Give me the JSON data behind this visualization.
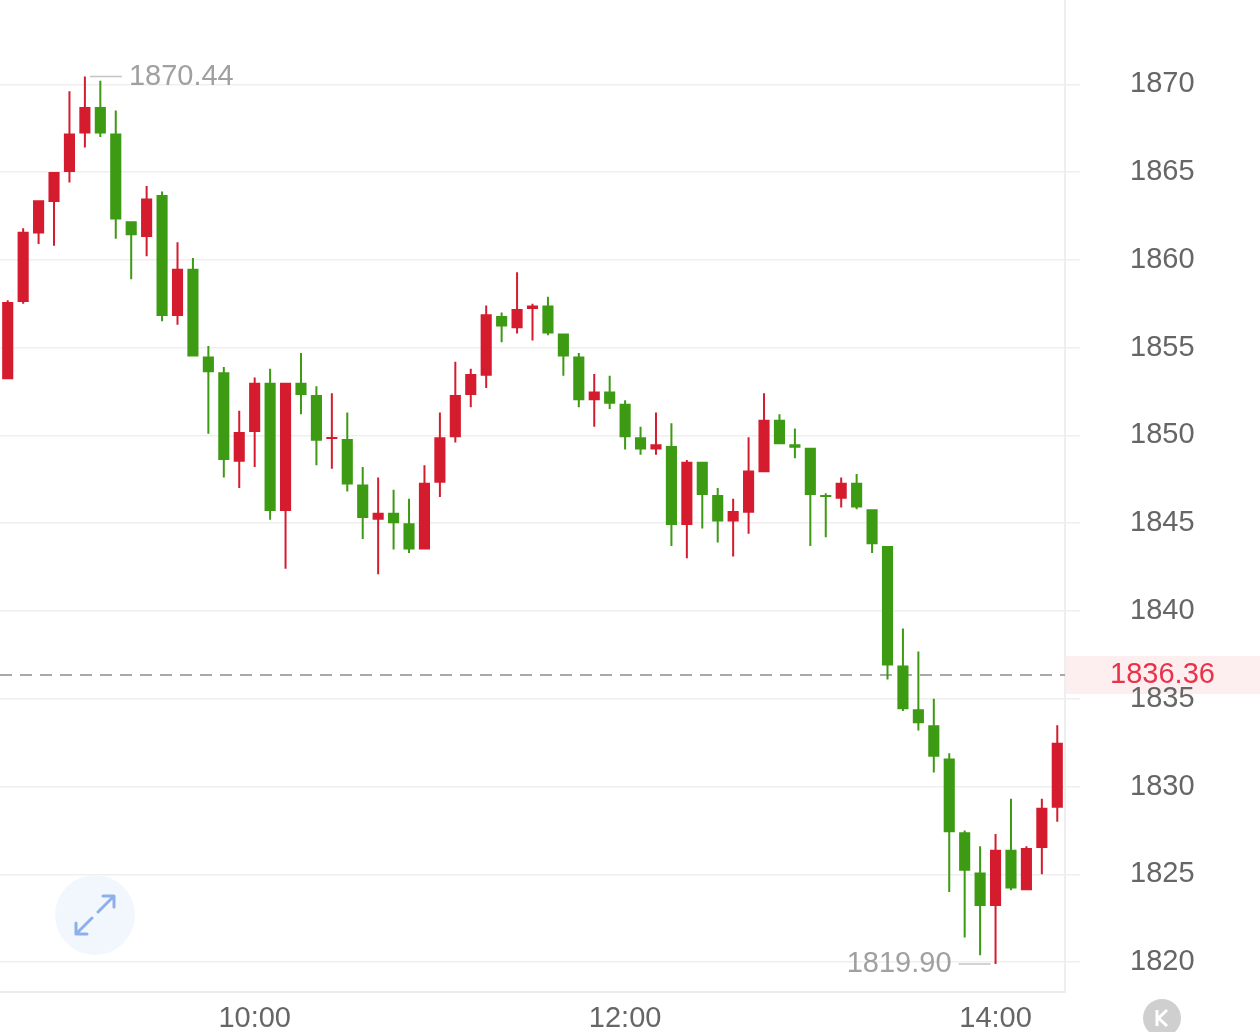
{
  "chart_data": {
    "type": "candlestick",
    "categories": [
      null,
      null,
      null,
      null,
      null,
      null,
      null,
      null,
      null,
      null,
      null,
      null,
      null,
      null,
      null,
      null,
      "10:00",
      null,
      null,
      null,
      null,
      null,
      null,
      null,
      null,
      null,
      null,
      null,
      null,
      null,
      null,
      null,
      null,
      null,
      null,
      null,
      null,
      null,
      null,
      null,
      "12:00",
      null,
      null,
      null,
      null,
      null,
      null,
      null,
      null,
      null,
      null,
      null,
      null,
      null,
      null,
      null,
      null,
      null,
      null,
      null,
      null,
      null,
      null,
      null,
      "14:00",
      null,
      null,
      null,
      null
    ],
    "ohlc": [
      [
        1853.2,
        1857.7,
        1853.2,
        1857.6
      ],
      [
        1857.6,
        1861.8,
        1857.5,
        1861.6
      ],
      [
        1861.5,
        1863.4,
        1860.9,
        1863.4
      ],
      [
        1863.3,
        1865.0,
        1860.8,
        1865.0
      ],
      [
        1865.0,
        1869.6,
        1864.4,
        1867.2
      ],
      [
        1867.2,
        1870.44,
        1866.4,
        1868.7
      ],
      [
        1868.7,
        1870.2,
        1867.0,
        1867.2
      ],
      [
        1867.2,
        1868.5,
        1861.2,
        1862.3
      ],
      [
        1862.2,
        1862.2,
        1858.9,
        1861.4
      ],
      [
        1861.3,
        1864.2,
        1860.2,
        1863.5
      ],
      [
        1863.7,
        1863.9,
        1856.5,
        1856.8
      ],
      [
        1856.8,
        1861.0,
        1856.3,
        1859.5
      ],
      [
        1859.5,
        1860.1,
        1854.5,
        1854.5
      ],
      [
        1854.5,
        1855.1,
        1850.1,
        1853.6
      ],
      [
        1853.6,
        1853.9,
        1847.6,
        1848.6
      ],
      [
        1848.5,
        1851.4,
        1847.0,
        1850.2
      ],
      [
        1850.2,
        1853.3,
        1848.2,
        1853.0
      ],
      [
        1853.0,
        1853.8,
        1845.2,
        1845.7
      ],
      [
        1845.7,
        1853.0,
        1842.4,
        1853.0
      ],
      [
        1853.0,
        1854.7,
        1851.2,
        1852.3
      ],
      [
        1852.3,
        1852.8,
        1848.3,
        1849.7
      ],
      [
        1849.8,
        1852.4,
        1848.1,
        1849.9
      ],
      [
        1849.8,
        1851.3,
        1846.8,
        1847.2
      ],
      [
        1847.2,
        1848.2,
        1844.1,
        1845.3
      ],
      [
        1845.2,
        1847.6,
        1842.1,
        1845.6
      ],
      [
        1845.6,
        1846.9,
        1843.5,
        1845.0
      ],
      [
        1845.0,
        1846.4,
        1843.3,
        1843.5
      ],
      [
        1843.5,
        1848.3,
        1843.5,
        1847.3
      ],
      [
        1847.3,
        1851.3,
        1846.5,
        1849.9
      ],
      [
        1849.9,
        1854.2,
        1849.6,
        1852.3
      ],
      [
        1852.3,
        1853.8,
        1851.6,
        1853.5
      ],
      [
        1853.4,
        1857.4,
        1852.7,
        1856.9
      ],
      [
        1856.8,
        1857.0,
        1855.3,
        1856.2
      ],
      [
        1856.1,
        1859.3,
        1855.8,
        1857.2
      ],
      [
        1857.2,
        1857.5,
        1855.4,
        1857.4
      ],
      [
        1857.4,
        1857.9,
        1855.7,
        1855.8
      ],
      [
        1855.8,
        1855.8,
        1853.4,
        1854.5
      ],
      [
        1854.5,
        1854.7,
        1851.6,
        1852.0
      ],
      [
        1852.0,
        1853.5,
        1850.5,
        1852.5
      ],
      [
        1852.5,
        1853.4,
        1851.5,
        1851.8
      ],
      [
        1851.8,
        1852.0,
        1849.2,
        1849.9
      ],
      [
        1849.9,
        1850.5,
        1848.9,
        1849.2
      ],
      [
        1849.2,
        1851.3,
        1848.9,
        1849.5
      ],
      [
        1849.4,
        1850.7,
        1843.7,
        1844.9
      ],
      [
        1844.9,
        1848.6,
        1843.0,
        1848.5
      ],
      [
        1848.5,
        1848.5,
        1844.7,
        1846.6
      ],
      [
        1846.6,
        1847.0,
        1843.9,
        1845.1
      ],
      [
        1845.1,
        1846.4,
        1843.1,
        1845.7
      ],
      [
        1845.6,
        1849.9,
        1844.4,
        1848.0
      ],
      [
        1847.9,
        1852.4,
        1847.9,
        1850.9
      ],
      [
        1850.9,
        1851.2,
        1849.5,
        1849.5
      ],
      [
        1849.5,
        1850.4,
        1848.7,
        1849.3
      ],
      [
        1849.3,
        1849.3,
        1843.7,
        1846.6
      ],
      [
        1846.6,
        1846.7,
        1844.2,
        1846.5
      ],
      [
        1846.4,
        1847.6,
        1845.9,
        1847.3
      ],
      [
        1847.3,
        1847.8,
        1845.8,
        1845.9
      ],
      [
        1845.8,
        1845.8,
        1843.3,
        1843.8
      ],
      [
        1843.7,
        1843.7,
        1836.1,
        1836.9
      ],
      [
        1836.9,
        1839.0,
        1834.3,
        1834.4
      ],
      [
        1834.4,
        1837.7,
        1833.2,
        1833.6
      ],
      [
        1833.5,
        1835.0,
        1830.8,
        1831.7
      ],
      [
        1831.6,
        1831.9,
        1824.0,
        1827.4
      ],
      [
        1827.4,
        1827.5,
        1821.4,
        1825.2
      ],
      [
        1825.1,
        1826.6,
        1820.4,
        1823.2
      ],
      [
        1823.2,
        1827.3,
        1819.9,
        1826.4
      ],
      [
        1826.4,
        1829.3,
        1824.1,
        1824.2
      ],
      [
        1824.1,
        1826.6,
        1824.1,
        1826.5
      ],
      [
        1826.5,
        1829.3,
        1825.0,
        1828.8
      ],
      [
        1828.8,
        1833.5,
        1828.0,
        1832.5
      ]
    ],
    "colors": [
      "#d51c2e",
      "#d51c2e",
      "#d51c2e",
      "#d51c2e",
      "#d51c2e",
      "#d51c2e",
      "#3d9a13",
      "#3d9a13",
      "#3d9a13",
      "#d51c2e",
      "#3d9a13",
      "#d51c2e",
      "#3d9a13",
      "#3d9a13",
      "#3d9a13",
      "#d51c2e",
      "#d51c2e",
      "#3d9a13",
      "#d51c2e",
      "#3d9a13",
      "#3d9a13",
      "#d51c2e",
      "#3d9a13",
      "#3d9a13",
      "#d51c2e",
      "#3d9a13",
      "#3d9a13",
      "#d51c2e",
      "#d51c2e",
      "#d51c2e",
      "#d51c2e",
      "#d51c2e",
      "#3d9a13",
      "#d51c2e",
      "#d51c2e",
      "#3d9a13",
      "#3d9a13",
      "#3d9a13",
      "#d51c2e",
      "#3d9a13",
      "#3d9a13",
      "#3d9a13",
      "#d51c2e",
      "#3d9a13",
      "#d51c2e",
      "#3d9a13",
      "#3d9a13",
      "#d51c2e",
      "#d51c2e",
      "#d51c2e",
      "#3d9a13",
      "#3d9a13",
      "#3d9a13",
      "#3d9a13",
      "#d51c2e",
      "#3d9a13",
      "#3d9a13",
      "#3d9a13",
      "#3d9a13",
      "#3d9a13",
      "#3d9a13",
      "#3d9a13",
      "#3d9a13",
      "#3d9a13",
      "#d51c2e",
      "#3d9a13",
      "#d51c2e",
      "#d51c2e",
      "#d51c2e"
    ],
    "ylim": [
      1818.3,
      1874.8
    ],
    "yticks": [
      1820,
      1825,
      1830,
      1835,
      1840,
      1845,
      1850,
      1855,
      1860,
      1865,
      1870
    ],
    "grid": "y",
    "ref_lines": [
      {
        "axis": "y",
        "value": 1836.36,
        "label": "1836.36",
        "color": "#a8a8a8",
        "line_style": "dashed"
      }
    ],
    "annotations": [
      "1870.44",
      {
        "text": "1819.90",
        "x": "14:00",
        "y": 1819.9
      }
    ]
  }
}
